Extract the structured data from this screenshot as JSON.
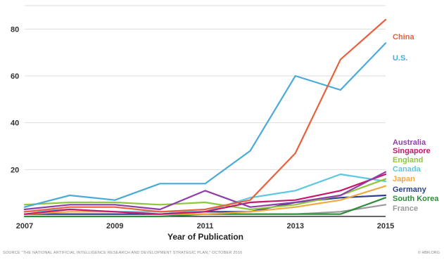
{
  "chart_data": {
    "type": "line",
    "xlabel": "Year of Publication",
    "ylabel": "",
    "x": [
      2007,
      2008,
      2009,
      2010,
      2011,
      2012,
      2013,
      2014,
      2015
    ],
    "xticks": [
      "2007",
      "2009",
      "2011",
      "2013",
      "2015"
    ],
    "yticks": [
      "20",
      "40",
      "60",
      "80"
    ],
    "ylim": [
      0,
      90
    ],
    "grid": true,
    "legend": "right-of-lines",
    "series": [
      {
        "name": "China",
        "color": "#e8603c",
        "values": [
          2,
          4,
          4,
          2,
          3,
          7,
          27,
          67,
          84
        ]
      },
      {
        "name": "U.S.",
        "color": "#4aaad8",
        "values": [
          4,
          9,
          7,
          14,
          14,
          28,
          60,
          54,
          74
        ]
      },
      {
        "name": "Australia",
        "color": "#8e3fa7",
        "values": [
          3,
          5,
          5,
          3,
          11,
          4,
          6,
          9,
          19
        ]
      },
      {
        "name": "Singapore",
        "color": "#c8176b",
        "values": [
          1,
          3,
          2,
          1,
          2,
          6,
          7,
          11,
          18
        ]
      },
      {
        "name": "England",
        "color": "#8ec63f",
        "values": [
          5,
          6,
          6,
          5,
          6,
          3,
          5,
          9,
          16
        ]
      },
      {
        "name": "Canada",
        "color": "#5cc8e0",
        "values": [
          2,
          3,
          2,
          2,
          2,
          8,
          11,
          18,
          15
        ]
      },
      {
        "name": "Japan",
        "color": "#f2a93b",
        "values": [
          1,
          2,
          2,
          1,
          1,
          2,
          4,
          7,
          13
        ]
      },
      {
        "name": "Germany",
        "color": "#2b3f8f",
        "values": [
          1,
          1,
          1,
          1,
          2,
          2,
          6,
          8,
          9
        ]
      },
      {
        "name": "South Korea",
        "color": "#2e8b3a",
        "values": [
          0,
          0,
          0,
          0,
          1,
          1,
          1,
          1,
          8
        ]
      },
      {
        "name": "France",
        "color": "#999999",
        "values": [
          1,
          1,
          1,
          1,
          1,
          1,
          1,
          2,
          5
        ]
      }
    ]
  },
  "footer": {
    "source": "SOURCE \"THE NATIONAL ARTIFICIAL INTELLIGENCE RESEARCH AND DEVELOPMENT STRATEGIC PLAN,\" OCTOBER 2016",
    "credit": "© HBR.ORG"
  }
}
